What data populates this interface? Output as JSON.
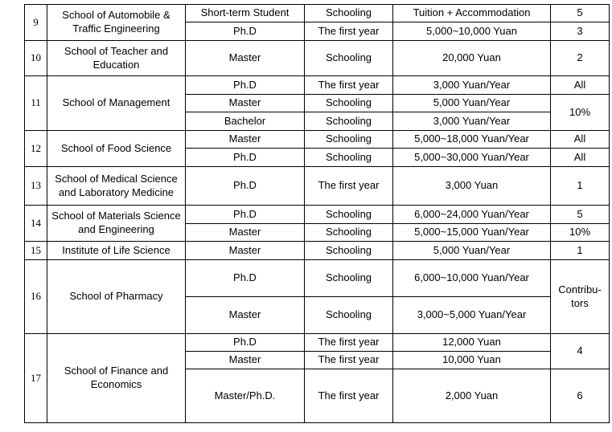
{
  "table": {
    "border_color": "#000000",
    "text_color": "#000000",
    "rows": [
      {
        "no": "9",
        "school": "School of Automobile & Traffic Engineering",
        "entries": [
          {
            "type": "Short-term Student",
            "period": "Schooling",
            "tuition": "Tuition + Accommodation",
            "count": "5",
            "h": 22
          },
          {
            "type": "Ph.D",
            "period": "The first year",
            "tuition": "5,000~10,000 Yuan",
            "count": "3",
            "h": 23
          }
        ]
      },
      {
        "no": "10",
        "school": "School of Teacher and Education",
        "entries": [
          {
            "type": "Master",
            "period": "Schooling",
            "tuition": "20,000 Yuan",
            "count": "2",
            "h": 44
          }
        ]
      },
      {
        "no": "11",
        "school": "School of Management",
        "entries": [
          {
            "type": "Ph.D",
            "period": "The first year",
            "tuition": "3,000 Yuan/Year",
            "count": "All",
            "h": 23
          },
          {
            "type": "Master",
            "period": "Schooling",
            "tuition": "5,000 Yuan/Year",
            "count": "10%",
            "count_rowspan": 2,
            "h": 22
          },
          {
            "type": "Bachelor",
            "period": "Schooling",
            "tuition": "3,000 Yuan/Year",
            "h": 23
          }
        ]
      },
      {
        "no": "12",
        "school": "School of Food Science",
        "entries": [
          {
            "type": "Master",
            "period": "Schooling",
            "tuition": "5,000~18,000 Yuan/Year",
            "count": "All",
            "h": 22
          },
          {
            "type": "Ph.D",
            "period": "Schooling",
            "tuition": "5,000~30,000 Yuan/Year",
            "count": "All",
            "h": 23
          }
        ]
      },
      {
        "no": "13",
        "school": "School of Medical Science and Laboratory Medicine",
        "entries": [
          {
            "type": "Ph.D",
            "period": "The first year",
            "tuition": "3,000 Yuan",
            "count": "1",
            "h": 48
          }
        ]
      },
      {
        "no": "14",
        "school": "School of Materials Science and Engineering",
        "entries": [
          {
            "type": "Ph.D",
            "period": "Schooling",
            "tuition": "6,000~24,000 Yuan/Year",
            "count": "5",
            "h": 23
          },
          {
            "type": "Master",
            "period": "Schooling",
            "tuition": "5,000~15,000 Yuan/Year",
            "count": "10%",
            "h": 22
          }
        ]
      },
      {
        "no": "15",
        "school": "Institute of Life Science",
        "entries": [
          {
            "type": "Master",
            "period": "Schooling",
            "tuition": "5,000 Yuan/Year",
            "count": "1",
            "h": 23
          }
        ]
      },
      {
        "no": "16",
        "school": "School of Pharmacy",
        "entries": [
          {
            "type": "Ph.D",
            "period": "Schooling",
            "tuition": "6,000~10,000 Yuan/Year",
            "count": "Contribu-\ntors",
            "count_rowspan": 2,
            "h": 46
          },
          {
            "type": "Master",
            "period": "Schooling",
            "tuition": "3,000~5,000 Yuan/Year",
            "h": 46
          }
        ]
      },
      {
        "no": "17",
        "school": "School of Finance and Economics",
        "entries": [
          {
            "type": "Ph.D",
            "period": "The first year",
            "tuition": "12,000 Yuan",
            "count": "4",
            "count_rowspan": 2,
            "h": 22
          },
          {
            "type": "Master",
            "period": "The first year",
            "tuition": "10,000 Yuan",
            "h": 22
          },
          {
            "type": "Master/Ph.D.",
            "period": "The first year",
            "tuition": "2,000 Yuan",
            "count": "6",
            "h": 67
          }
        ]
      }
    ]
  }
}
